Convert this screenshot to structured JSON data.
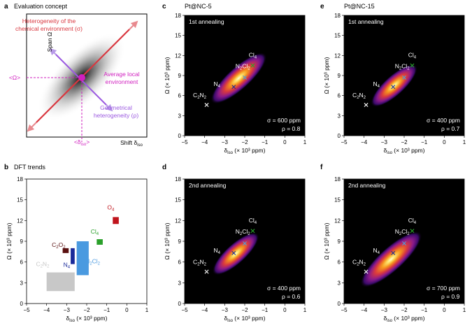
{
  "panels": {
    "a": {
      "letter": "a",
      "title": "Evaluation concept",
      "ylabel": "Span Ω",
      "xlabel": "Shift δ",
      "xlabel_sub": "iso",
      "annotations": {
        "heterogeneity_line1": "Heterogeneity of the",
        "heterogeneity_line2": "chemical environment (σ)",
        "average_line1": "Average local",
        "average_line2": "environment",
        "geometrical_line1": "Geometrical",
        "geometrical_line2": "heterogeneity (ρ)",
        "omega_mark": "<Ω>",
        "delta_mark": "<δ",
        "delta_mark_sub": "iso",
        "delta_mark_end": ">"
      }
    },
    "b": {
      "letter": "b",
      "title": "DFT trends"
    },
    "c": {
      "letter": "c",
      "title": "Pt@NC-5"
    },
    "e": {
      "letter": "e",
      "title": "Pt@NC-15"
    },
    "d": {
      "letter": "d"
    },
    "f": {
      "letter": "f"
    }
  },
  "common": {
    "xlabel": "δ",
    "xlabel_sub": "iso",
    "xlabel_rest": " (× 10³ ppm)",
    "ylabel": "Ω (× 10³ ppm)",
    "xticks": [
      "−5",
      "−4",
      "−3",
      "−2",
      "−1",
      "0",
      "1"
    ],
    "yticks": [
      "0",
      "3",
      "6",
      "9",
      "12",
      "15",
      "18"
    ]
  },
  "colors": {
    "heterogeneity": "#d9373f",
    "average": "#d01fbf",
    "geometrical": "#9b59e0",
    "c2o2": "#5a1010",
    "o4": "#c0141c",
    "cl4": "#2aa02a",
    "n4": "#1a2a9a",
    "n2cl2": "#4a9ae0",
    "c2n2": "#c8c8c8"
  },
  "chart_data": [
    {
      "panel": "b",
      "type": "bar",
      "title": "DFT trends",
      "xlabel": "δiso (× 10³ ppm)",
      "ylabel": "Ω (× 10³ ppm)",
      "xlim": [
        -5,
        1
      ],
      "ylim": [
        0,
        18
      ],
      "rects": [
        {
          "label": "C2O2",
          "x": [
            -3.2,
            -2.9
          ],
          "y": [
            7.3,
            8.0
          ],
          "color": "#5a1010"
        },
        {
          "label": "O4",
          "x": [
            -0.7,
            -0.4
          ],
          "y": [
            11.5,
            12.5
          ],
          "color": "#c0141c"
        },
        {
          "label": "Cl4",
          "x": [
            -1.5,
            -1.2
          ],
          "y": [
            8.5,
            9.3
          ],
          "color": "#2aa02a"
        },
        {
          "label": "N4",
          "x": [
            -2.8,
            -2.6
          ],
          "y": [
            5.7,
            8.0
          ],
          "color": "#1a2a9a"
        },
        {
          "label": "N2Cl2",
          "x": [
            -2.5,
            -1.9
          ],
          "y": [
            4.1,
            9.0
          ],
          "color": "#4a9ae0"
        },
        {
          "label": "C2N2",
          "x": [
            -4.0,
            -2.6
          ],
          "y": [
            1.8,
            4.5
          ],
          "color": "#c8c8c8"
        }
      ]
    },
    {
      "panel": "c",
      "type": "heatmap",
      "title": "Pt@NC-5",
      "subtitle": "1st annealing",
      "center": [
        -2.3,
        8.6
      ],
      "sigma_text": "σ = 600 ppm",
      "rho_text": "ρ = 0.8",
      "spread": 1.0,
      "markers": [
        {
          "label": "Cl4",
          "x": -1.6,
          "y": 10.5,
          "color": "#2aa02a"
        },
        {
          "label": "N2Cl2",
          "x": -2.0,
          "y": 8.7,
          "color": "#4a9ae0"
        },
        {
          "label": "N4",
          "x": -2.55,
          "y": 7.3,
          "color": "#1a2a9a"
        },
        {
          "label": "C2N2",
          "x": -3.9,
          "y": 4.6,
          "color": "#ffffff"
        }
      ]
    },
    {
      "panel": "e",
      "type": "heatmap",
      "title": "Pt@NC-15",
      "subtitle": "1st annealing",
      "center": [
        -2.5,
        7.5
      ],
      "sigma_text": "σ = 400 ppm",
      "rho_text": "ρ = 0.7",
      "spread": 0.65,
      "markers": [
        {
          "label": "Cl4",
          "x": -1.6,
          "y": 10.5,
          "color": "#2aa02a"
        },
        {
          "label": "N2Cl2",
          "x": -2.0,
          "y": 8.7,
          "color": "#4a9ae0"
        },
        {
          "label": "N4",
          "x": -2.55,
          "y": 7.3,
          "color": "#1a2a9a"
        },
        {
          "label": "C2N2",
          "x": -3.9,
          "y": 4.6,
          "color": "#ffffff"
        }
      ]
    },
    {
      "panel": "d",
      "type": "heatmap",
      "subtitle": "2nd annealing",
      "center": [
        -2.45,
        7.2
      ],
      "sigma_text": "σ = 400 ppm",
      "rho_text": "ρ = 0.6",
      "spread": 0.65,
      "markers": [
        {
          "label": "Cl4",
          "x": -1.6,
          "y": 10.5,
          "color": "#2aa02a"
        },
        {
          "label": "N2Cl2",
          "x": -2.0,
          "y": 8.7,
          "color": "#4a9ae0"
        },
        {
          "label": "N4",
          "x": -2.55,
          "y": 7.3,
          "color": "#1a2a9a"
        },
        {
          "label": "C2N2",
          "x": -3.9,
          "y": 4.6,
          "color": "#ffffff"
        }
      ]
    },
    {
      "panel": "f",
      "type": "heatmap",
      "subtitle": "2nd annealing",
      "center": [
        -2.65,
        6.4
      ],
      "sigma_text": "σ = 700 ppm",
      "rho_text": "ρ = 0.9",
      "spread": 1.2,
      "markers": [
        {
          "label": "Cl4",
          "x": -1.6,
          "y": 10.5,
          "color": "#2aa02a"
        },
        {
          "label": "N2Cl2",
          "x": -2.0,
          "y": 8.7,
          "color": "#4a9ae0"
        },
        {
          "label": "N4",
          "x": -2.55,
          "y": 7.3,
          "color": "#1a2a9a"
        },
        {
          "label": "C2N2",
          "x": -3.9,
          "y": 4.6,
          "color": "#ffffff"
        }
      ]
    }
  ]
}
